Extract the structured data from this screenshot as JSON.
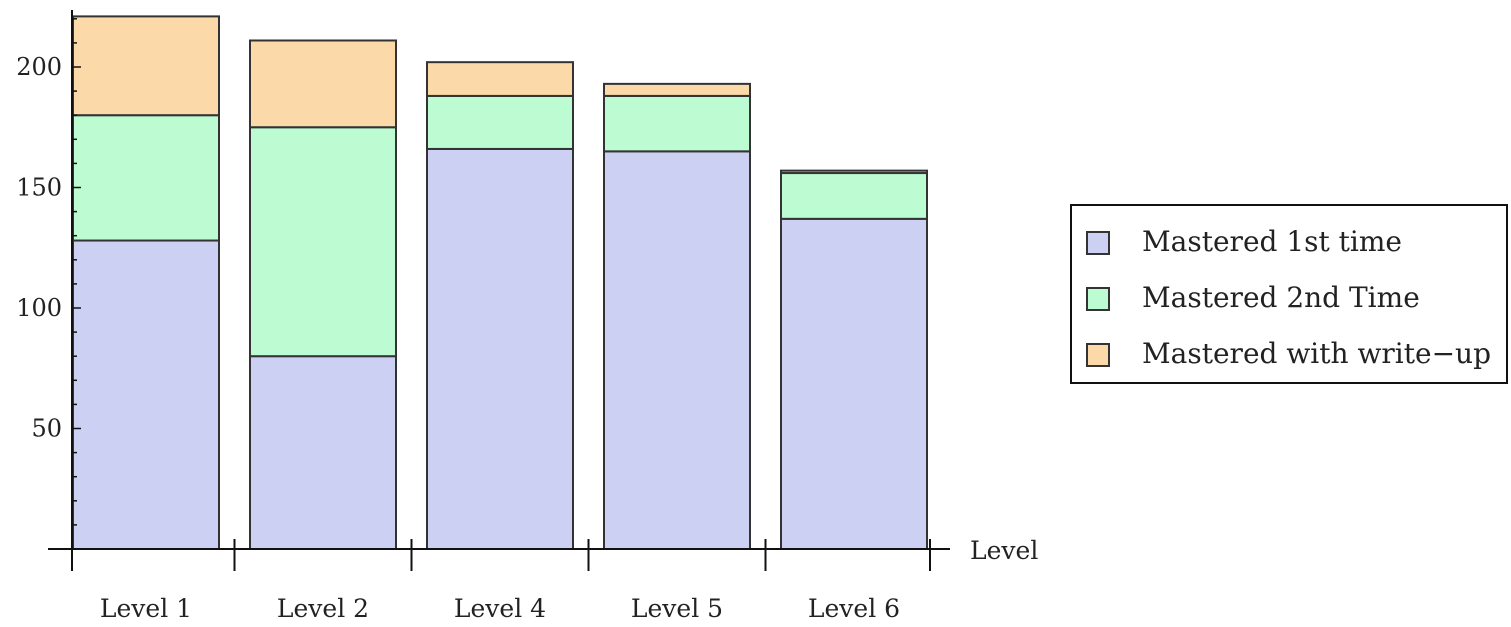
{
  "chart_data": {
    "type": "bar",
    "stacked": true,
    "categories": [
      "Level 1",
      "Level 2",
      "Level 4",
      "Level 5",
      "Level 6"
    ],
    "series": [
      {
        "name": "Mastered 1st time",
        "values": [
          128,
          80,
          166,
          165,
          137
        ],
        "color": "#ccd1f4"
      },
      {
        "name": "Mastered 2nd Time",
        "values": [
          52,
          95,
          22,
          23,
          19
        ],
        "color": "#bdfbd2"
      },
      {
        "name": "Mastered with write−up",
        "values": [
          41,
          36,
          14,
          5,
          1
        ],
        "color": "#fcd9a8"
      }
    ],
    "xlabel": "Level",
    "ylabel": "",
    "ylim": [
      0,
      220
    ],
    "yticks": [
      50,
      100,
      150,
      200
    ],
    "legend_position": "right",
    "grid": false
  }
}
